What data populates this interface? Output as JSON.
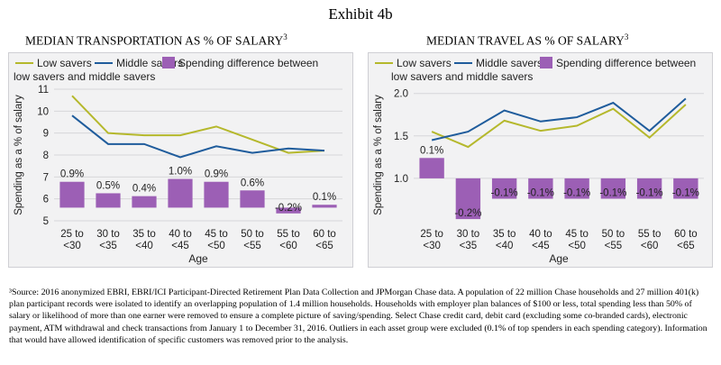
{
  "exhibit_title": "Exhibit 4b",
  "footnote": "³Source: 2016 anonymized EBRI, EBRI/ICI Participant-Directed Retirement Plan Data Collection and JPMorgan Chase data. A population of 22 million Chase households and 27 million 401(k) plan participant records were isolated to identify an overlapping population of 1.4 million households. Households with employer plan balances of $100 or less, total spending less than 50% of salary or likelihood of more than one earner were removed to ensure a complete picture of saving/spending. Select Chase credit card, debit card (excluding some co-branded cards), electronic payment, ATM withdrawal and check transactions from January 1 to December 31, 2016. Outliers in each asset group were excluded (0.1% of top spenders in each spending category). Information that would have allowed identification of specific customers was removed prior to the analysis.",
  "colors": {
    "low": "#b5b82c",
    "middle": "#1f5c9c",
    "bar": "#9c5fb5",
    "panel": "#f2f2f3",
    "grid": "#d6d6d9"
  },
  "chart_data": [
    {
      "type": "bar+line",
      "title": "MEDIAN TRANSPORTATION AS % OF SALARY",
      "title_sup": "3",
      "xlabel": "Age",
      "ylabel": "Spending as a % of salary",
      "categories": [
        [
          "25 to",
          "<30"
        ],
        [
          "30 to",
          "<35"
        ],
        [
          "35 to",
          "<40"
        ],
        [
          "40 to",
          "<45"
        ],
        [
          "45 to",
          "<50"
        ],
        [
          "50 to",
          "<55"
        ],
        [
          "55 to",
          "<60"
        ],
        [
          "60 to",
          "<65"
        ]
      ],
      "ylim": [
        5,
        11
      ],
      "yticks": [
        5,
        6,
        7,
        8,
        9,
        10,
        11
      ],
      "ytick_labels": [
        "5",
        "6",
        "7",
        "8",
        "9",
        "10",
        "11"
      ],
      "legend": [
        "Low savers",
        "Middle savers",
        "Spending difference between",
        "low savers and middle savers"
      ],
      "series": [
        {
          "name": "Low savers",
          "values": [
            10.7,
            9.0,
            8.9,
            8.9,
            9.3,
            8.7,
            8.1,
            8.2
          ]
        },
        {
          "name": "Middle savers",
          "values": [
            9.8,
            8.5,
            8.5,
            7.9,
            8.4,
            8.1,
            8.3,
            8.2
          ]
        }
      ],
      "bar_baseline": 5.6,
      "bar_scale": 1.31,
      "bars": [
        0.9,
        0.5,
        0.4,
        1.0,
        0.9,
        0.6,
        -0.2,
        0.1
      ],
      "bar_labels": [
        "0.9%",
        "0.5%",
        "0.4%",
        "1.0%",
        "0.9%",
        "0.6%",
        "-0.2%",
        "0.1%"
      ]
    },
    {
      "type": "bar+line",
      "title": "MEDIAN TRAVEL AS % OF SALARY",
      "title_sup": "3",
      "xlabel": "Age",
      "ylabel": "Spending as a % of salary",
      "categories": [
        [
          "25 to",
          "<30"
        ],
        [
          "30 to",
          "<35"
        ],
        [
          "35 to",
          "<40"
        ],
        [
          "40 to",
          "<45"
        ],
        [
          "45 to",
          "<50"
        ],
        [
          "50 to",
          "<55"
        ],
        [
          "55 to",
          "<60"
        ],
        [
          "60 to",
          "<65"
        ]
      ],
      "ylim": [
        0.5,
        2.05
      ],
      "yticks": [
        1.0,
        1.5,
        2.0
      ],
      "ytick_labels": [
        "1.0",
        "1.5",
        "2.0"
      ],
      "legend": [
        "Low savers",
        "Middle savers",
        "Spending difference between",
        "low savers and middle savers"
      ],
      "series": [
        {
          "name": "Low savers",
          "values": [
            1.55,
            1.37,
            1.68,
            1.56,
            1.62,
            1.82,
            1.48,
            1.87
          ]
        },
        {
          "name": "Middle savers",
          "values": [
            1.45,
            1.55,
            1.8,
            1.67,
            1.72,
            1.89,
            1.56,
            1.94
          ]
        }
      ],
      "bar_baseline": 1.0,
      "bar_scale": 2.4,
      "bars": [
        0.1,
        -0.2,
        -0.1,
        -0.1,
        -0.1,
        -0.1,
        -0.1,
        -0.1
      ],
      "bar_labels": [
        "0.1%",
        "-0.2%",
        "-0.1%",
        "-0.1%",
        "-0.1%",
        "-0.1%",
        "-0.1%",
        "-0.1%"
      ]
    }
  ]
}
